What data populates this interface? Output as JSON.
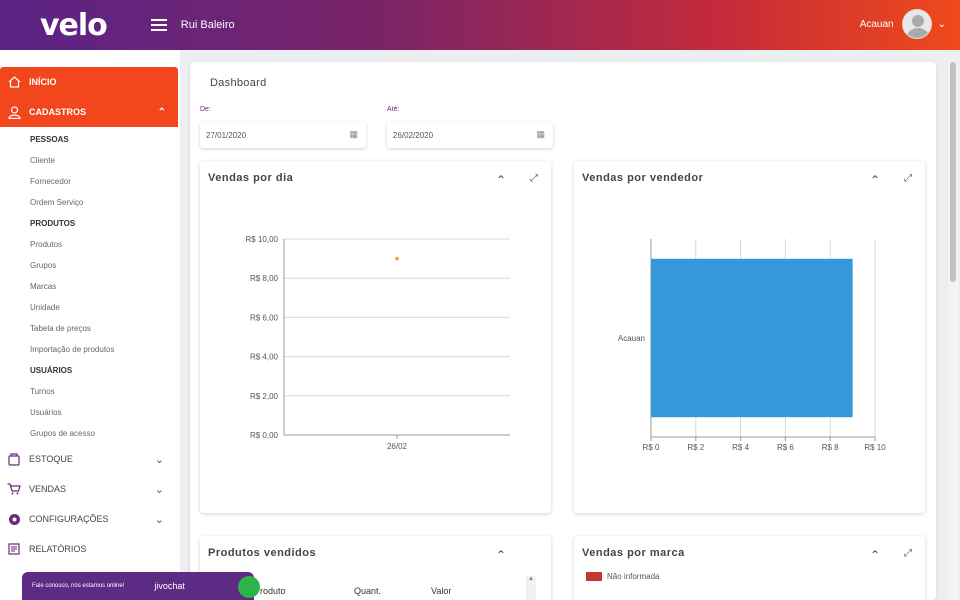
{
  "header": {
    "logo": "velo",
    "company": "Rui Baleiro",
    "user_name": "Acauan"
  },
  "sidebar": {
    "inicio": "INÍCIO",
    "cadastros": "CADASTROS",
    "groups": [
      {
        "head": "PESSOAS",
        "items": [
          "Cliente",
          "Fornecedor",
          "Ordem Serviço"
        ]
      },
      {
        "head": "PRODUTOS",
        "items": [
          "Produtos",
          "Grupos",
          "Marcas",
          "Unidade",
          "Tabela de preços",
          "Importação de produtos"
        ]
      },
      {
        "head": "USUÁRIOS",
        "items": [
          "Turnos",
          "Usuários",
          "Grupos de acesso"
        ]
      }
    ],
    "estoque": "ESTOQUE",
    "vendas": "VENDAS",
    "configuracoes": "CONFIGURAÇÕES",
    "relatorios": "RELATÓRIOS"
  },
  "dashboard": {
    "title": "Dashboard",
    "from_label": "De:",
    "from_value": "27/01/2020",
    "to_label": "Até:",
    "to_value": "26/02/2020"
  },
  "panels": {
    "vendas_dia": "Vendas por dia",
    "vendas_vendedor": "Vendas por vendedor",
    "produtos_vendidos": "Produtos vendidos",
    "vendas_marca": "Vendas por marca"
  },
  "produtos_table": {
    "columns": [
      "Produto",
      "Quant.",
      "Valor"
    ]
  },
  "marca_legend": "Não informada",
  "chat": {
    "message": "Fale conosco, nós estamos online!",
    "brand": "jivochat"
  },
  "colors": {
    "accent": "#f2471c",
    "purple": "#5b2386",
    "bar": "#3498db",
    "point": "#e8a33a"
  },
  "chart_data": [
    {
      "type": "scatter",
      "title": "Vendas por dia",
      "categories": [
        "26/02"
      ],
      "values": [
        9
      ],
      "y_ticks": [
        "R$ 10,00",
        "R$ 8,00",
        "R$ 6,00",
        "R$ 4,00",
        "R$ 2,00",
        "R$ 0,00"
      ],
      "ylim": [
        0,
        10
      ],
      "grid": true
    },
    {
      "type": "bar",
      "orientation": "horizontal",
      "title": "Vendas por vendedor",
      "categories": [
        "Acauan"
      ],
      "values": [
        9
      ],
      "x_ticks": [
        "R$ 0",
        "R$ 2",
        "R$ 4",
        "R$ 6",
        "R$ 8",
        "R$ 10"
      ],
      "xlim": [
        0,
        10
      ],
      "grid": true
    }
  ]
}
